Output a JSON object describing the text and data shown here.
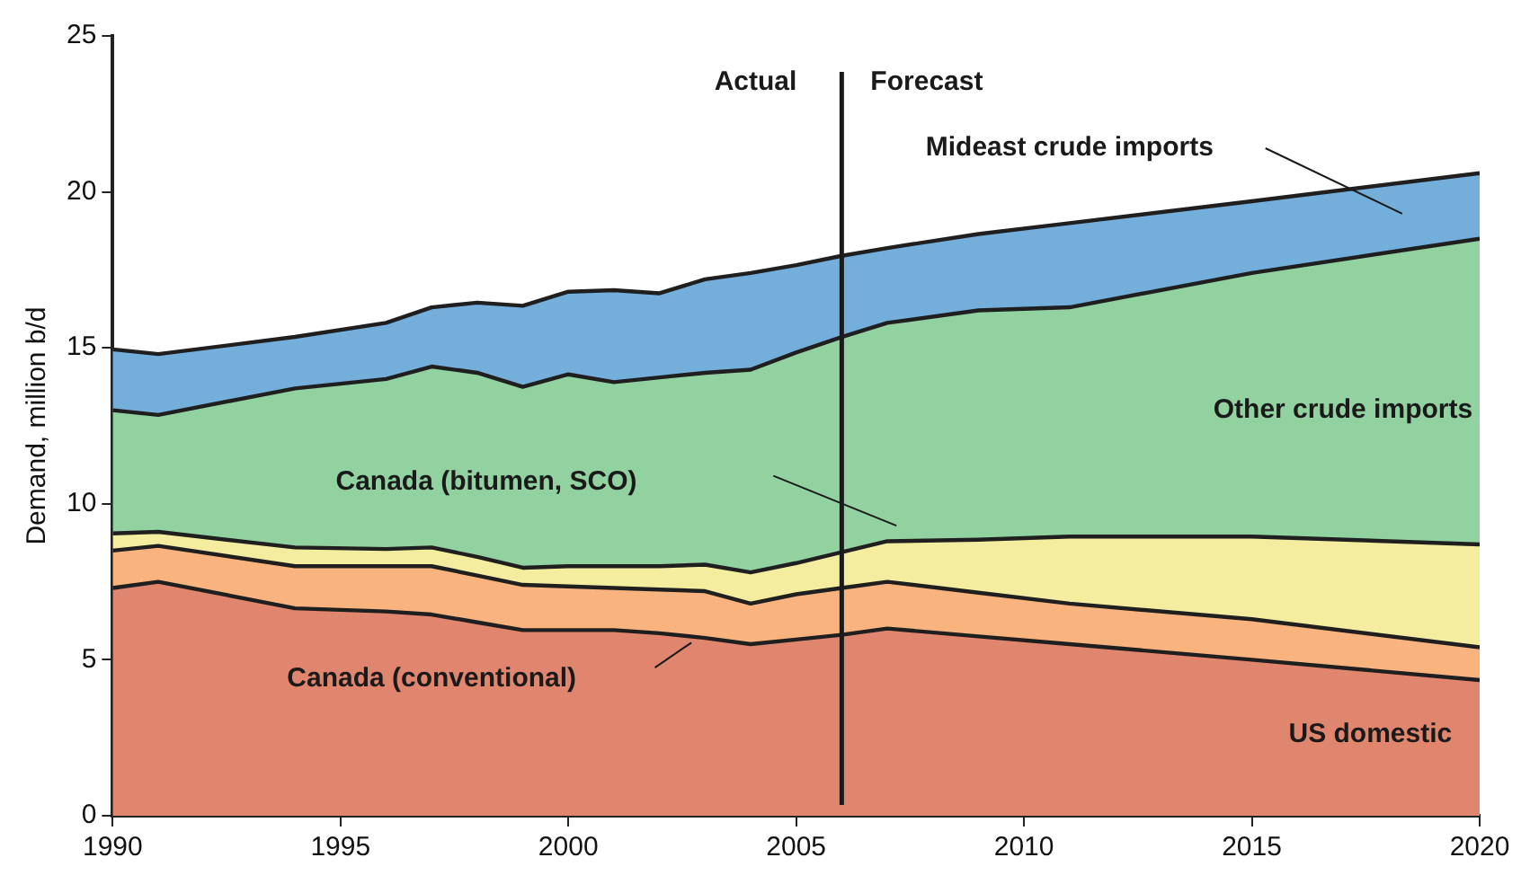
{
  "chart_data": {
    "type": "area",
    "stacked": true,
    "ylabel": "Demand, million b/d",
    "x": [
      1990,
      1991,
      1994,
      1996,
      1997,
      1998,
      1999,
      2000,
      2001,
      2002,
      2003,
      2004,
      2005,
      2006,
      2007,
      2009,
      2011,
      2015,
      2020
    ],
    "xlim": [
      1990,
      2020
    ],
    "xticks": [
      1990,
      1995,
      2000,
      2005,
      2010,
      2015,
      2020
    ],
    "ylim": [
      0,
      25
    ],
    "yticks": [
      0,
      5,
      10,
      15,
      20,
      25
    ],
    "grid": false,
    "legend": false,
    "series": [
      {
        "name": "US domestic",
        "color": "#e0866f",
        "values": [
          7.3,
          7.5,
          6.65,
          6.55,
          6.45,
          6.2,
          5.95,
          5.95,
          5.95,
          5.85,
          5.7,
          5.5,
          5.65,
          5.8,
          6.0,
          5.75,
          5.5,
          5.0,
          4.35
        ]
      },
      {
        "name": "Canada (conventional)",
        "color": "#f8b37e",
        "values": [
          1.2,
          1.15,
          1.35,
          1.45,
          1.55,
          1.5,
          1.45,
          1.4,
          1.35,
          1.4,
          1.5,
          1.3,
          1.45,
          1.5,
          1.5,
          1.4,
          1.3,
          1.3,
          1.05
        ]
      },
      {
        "name": "Canada (bitumen, SCO)",
        "color": "#f4ec9e",
        "values": [
          0.55,
          0.45,
          0.6,
          0.55,
          0.6,
          0.6,
          0.55,
          0.65,
          0.7,
          0.75,
          0.85,
          1.0,
          1.0,
          1.15,
          1.3,
          1.7,
          2.15,
          2.65,
          3.3
        ]
      },
      {
        "name": "Other crude imports",
        "color": "#92d1a0",
        "values": [
          3.95,
          3.75,
          5.1,
          5.45,
          5.8,
          5.9,
          5.8,
          6.15,
          5.9,
          6.05,
          6.15,
          6.5,
          6.75,
          6.9,
          7.0,
          7.35,
          7.35,
          8.45,
          9.8
        ]
      },
      {
        "name": "Mideast crude imports",
        "color": "#74aedb",
        "values": [
          1.95,
          1.95,
          1.65,
          1.8,
          1.9,
          2.25,
          2.6,
          2.65,
          2.95,
          2.7,
          3.0,
          3.1,
          2.8,
          2.6,
          2.4,
          2.45,
          2.7,
          2.3,
          2.1
        ]
      }
    ],
    "ref_lines": [
      {
        "axis": "x",
        "value": 2006,
        "color": "#1a1a1a"
      }
    ],
    "annotations": [
      "Actual",
      "Forecast"
    ]
  }
}
